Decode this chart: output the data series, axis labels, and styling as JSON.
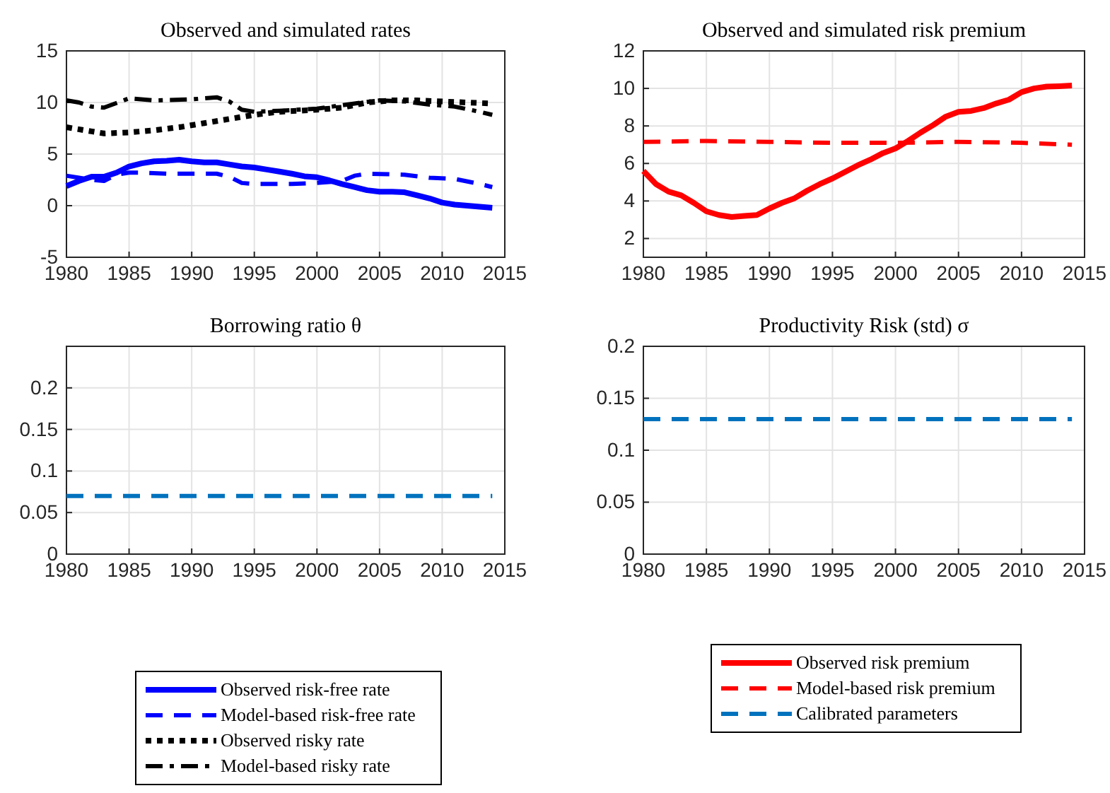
{
  "chart_data": [
    {
      "type": "line",
      "title": "Observed and simulated rates",
      "xlim": [
        1980,
        2015
      ],
      "xticks": [
        1980,
        1985,
        1990,
        1995,
        2000,
        2005,
        2010,
        2015
      ],
      "ylim": [
        -5,
        15
      ],
      "yticks": [
        -5,
        0,
        5,
        10,
        15
      ],
      "grid": true,
      "legend": "bottom",
      "series": [
        {
          "name": "Observed risk-free rate",
          "color": "#0000ff",
          "line_style": "solid",
          "x": [
            1980,
            1981,
            1982,
            1983,
            1984,
            1985,
            1986,
            1987,
            1988,
            1989,
            1990,
            1991,
            1992,
            1993,
            1994,
            1995,
            1996,
            1997,
            1998,
            1999,
            2000,
            2001,
            2002,
            2003,
            2004,
            2005,
            2006,
            2007,
            2008,
            2009,
            2010,
            2011,
            2012,
            2013,
            2014
          ],
          "values": [
            1.9,
            2.4,
            2.8,
            2.8,
            3.2,
            3.8,
            4.1,
            4.3,
            4.35,
            4.45,
            4.3,
            4.2,
            4.2,
            4.0,
            3.8,
            3.7,
            3.5,
            3.3,
            3.1,
            2.85,
            2.75,
            2.45,
            2.1,
            1.8,
            1.5,
            1.35,
            1.35,
            1.3,
            1.0,
            0.7,
            0.3,
            0.1,
            0.0,
            -0.1,
            -0.2
          ]
        },
        {
          "name": "Model-based risk-free rate",
          "color": "#0000ff",
          "line_style": "dashed",
          "x": [
            1980,
            1981,
            1982,
            1983,
            1984,
            1985,
            1986,
            1988,
            1990,
            1992,
            1993,
            1994,
            1995,
            1998,
            2000,
            2002,
            2003,
            2004,
            2007,
            2009,
            2011,
            2013,
            2014
          ],
          "values": [
            2.9,
            2.7,
            2.5,
            2.4,
            3.0,
            3.2,
            3.2,
            3.1,
            3.1,
            3.1,
            2.8,
            2.2,
            2.1,
            2.1,
            2.2,
            2.4,
            2.9,
            3.1,
            3.0,
            2.7,
            2.6,
            2.1,
            1.8
          ]
        },
        {
          "name": "Observed risky rate",
          "color": "#000000",
          "line_style": "dotted",
          "x": [
            1980,
            1982,
            1983,
            1985,
            1987,
            1989,
            1991,
            1993,
            1995,
            1997,
            2000,
            2002,
            2004,
            2006,
            2008,
            2010,
            2012,
            2014
          ],
          "values": [
            7.6,
            7.2,
            7.0,
            7.1,
            7.3,
            7.6,
            8.0,
            8.4,
            8.8,
            9.1,
            9.3,
            9.5,
            10.0,
            10.2,
            10.2,
            10.1,
            10.0,
            9.9
          ]
        },
        {
          "name": "Model-based risky rate",
          "color": "#000000",
          "line_style": "dashdot",
          "x": [
            1980,
            1981,
            1982,
            1983,
            1985,
            1987,
            1990,
            1992,
            1993,
            1994,
            1995,
            1997,
            2000,
            2003,
            2005,
            2007,
            2009,
            2011,
            2013,
            2014
          ],
          "values": [
            10.2,
            10.0,
            9.6,
            9.5,
            10.4,
            10.2,
            10.3,
            10.5,
            10.1,
            9.3,
            9.1,
            9.2,
            9.4,
            9.9,
            10.2,
            10.1,
            9.8,
            9.6,
            9.1,
            8.8
          ]
        }
      ]
    },
    {
      "type": "line",
      "title": "Observed and simulated risk premium",
      "xlim": [
        1980,
        2015
      ],
      "xticks": [
        1980,
        1985,
        1990,
        1995,
        2000,
        2005,
        2010,
        2015
      ],
      "ylim": [
        1,
        12
      ],
      "yticks": [
        2,
        4,
        6,
        8,
        10,
        12
      ],
      "grid": true,
      "legend": "bottom",
      "series": [
        {
          "name": "Observed risk premium",
          "color": "#ff0000",
          "line_style": "solid",
          "x": [
            1980,
            1981,
            1982,
            1983,
            1984,
            1985,
            1986,
            1987,
            1988,
            1989,
            1990,
            1991,
            1992,
            1993,
            1994,
            1995,
            1996,
            1997,
            1998,
            1999,
            2000,
            2001,
            2002,
            2003,
            2004,
            2005,
            2006,
            2007,
            2008,
            2009,
            2010,
            2011,
            2012,
            2013,
            2014
          ],
          "values": [
            5.6,
            4.9,
            4.5,
            4.3,
            3.9,
            3.45,
            3.25,
            3.15,
            3.2,
            3.25,
            3.6,
            3.9,
            4.15,
            4.55,
            4.9,
            5.2,
            5.55,
            5.9,
            6.2,
            6.55,
            6.8,
            7.2,
            7.65,
            8.05,
            8.5,
            8.75,
            8.8,
            8.95,
            9.2,
            9.4,
            9.8,
            10.0,
            10.1,
            10.12,
            10.15
          ]
        },
        {
          "name": "Model-based risk premium",
          "color": "#ff0000",
          "line_style": "dashed",
          "x": [
            1980,
            1985,
            1990,
            1995,
            2000,
            2005,
            2010,
            2014
          ],
          "values": [
            7.15,
            7.2,
            7.15,
            7.1,
            7.1,
            7.15,
            7.1,
            7.0
          ]
        }
      ]
    },
    {
      "type": "line",
      "title": "Borrowing ratio θ",
      "xlim": [
        1980,
        2015
      ],
      "xticks": [
        1980,
        1985,
        1990,
        1995,
        2000,
        2005,
        2010,
        2015
      ],
      "ylim": [
        0,
        0.25
      ],
      "yticks": [
        0,
        0.05,
        0.1,
        0.15,
        0.2
      ],
      "grid": true,
      "series": [
        {
          "color": "#0072bd",
          "line_style": "dashed",
          "x": [
            1980,
            2014
          ],
          "values": [
            0.07,
            0.07
          ]
        }
      ]
    },
    {
      "type": "line",
      "title": "Productivity Risk (std) σ",
      "xlim": [
        1980,
        2015
      ],
      "xticks": [
        1980,
        1985,
        1990,
        1995,
        2000,
        2005,
        2010,
        2015
      ],
      "ylim": [
        0,
        0.2
      ],
      "yticks": [
        0,
        0.05,
        0.1,
        0.15,
        0.2
      ],
      "grid": true,
      "legend": "bottom",
      "series": [
        {
          "name": "Calibrated parameters",
          "color": "#0072bd",
          "line_style": "dashed",
          "x": [
            1980,
            2014
          ],
          "values": [
            0.13,
            0.13
          ]
        }
      ]
    }
  ]
}
